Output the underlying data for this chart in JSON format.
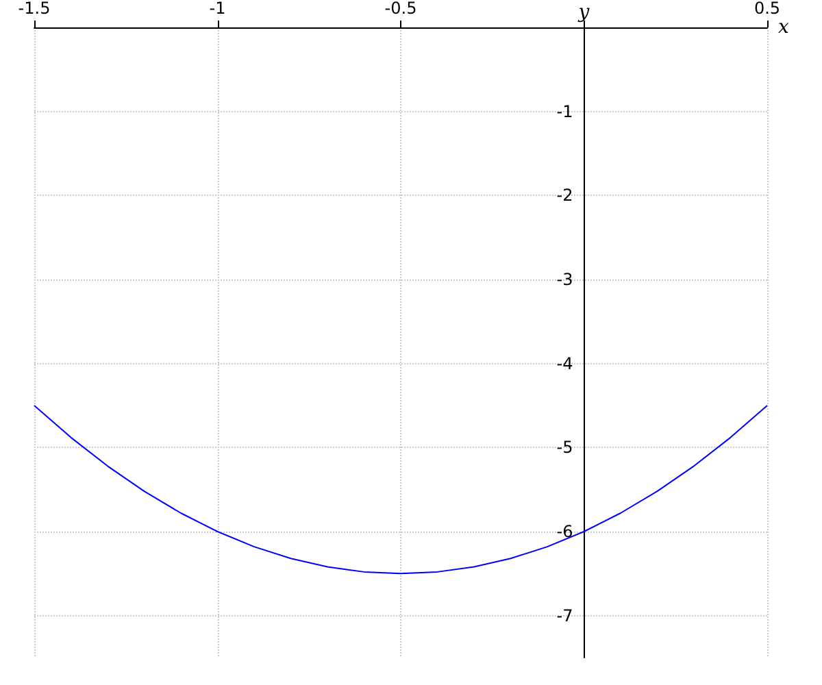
{
  "chart_data": {
    "type": "line",
    "xlabel": "x",
    "ylabel": "y",
    "xlim": [
      -1.5,
      0.5
    ],
    "ylim": [
      -7.5,
      0
    ],
    "xticks": [
      -1.5,
      -1,
      -0.5,
      {
        "value": 0,
        "label": null
      },
      0.5
    ],
    "yticks": [
      {
        "value": 0,
        "label": null
      },
      -1,
      -2,
      -3,
      -4,
      -5,
      -6,
      -7
    ],
    "grid": true,
    "marker": "none",
    "line_style": "solid",
    "series": [
      {
        "color": "#0000ff",
        "x": [
          -1.5,
          -1.4,
          -1.3,
          -1.2,
          -1.1,
          -1.0,
          -0.9,
          -0.8,
          -0.7,
          -0.6,
          -0.5,
          -0.4,
          -0.3,
          -0.2,
          -0.1,
          0,
          0.1,
          0.2,
          0.3,
          0.4,
          0.5
        ],
        "values": [
          -4.5,
          -4.88,
          -5.22,
          -5.52,
          -5.78,
          -6,
          -6.18,
          -6.32,
          -6.42,
          -6.48,
          -6.5,
          -6.48,
          -6.42,
          -6.32,
          -6.18,
          -6,
          -5.78,
          -5.52,
          -5.22,
          -4.88,
          -4.5
        ]
      }
    ]
  }
}
